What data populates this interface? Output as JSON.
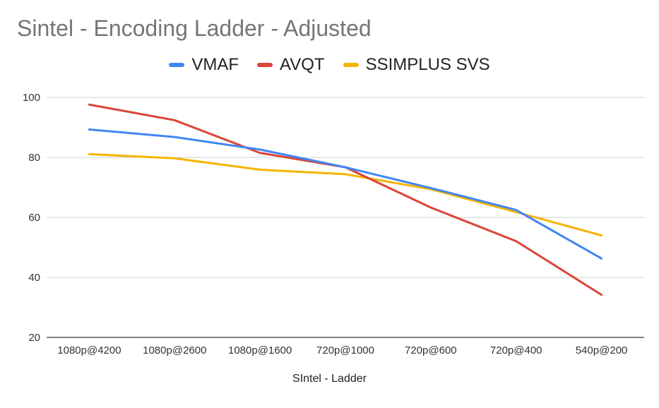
{
  "title": "Sintel - Encoding Ladder - Adjusted",
  "legend": [
    {
      "name": "VMAF",
      "color": "#4285f4"
    },
    {
      "name": "AVQT",
      "color": "#db4437"
    },
    {
      "name": "SSIMPLUS SVS",
      "color": "#f4b400"
    }
  ],
  "chart_data": {
    "type": "line",
    "title": "Sintel - Encoding Ladder - Adjusted",
    "xlabel": "SIntel - Ladder",
    "ylabel": "",
    "categories": [
      "1080p@4200",
      "1080p@2600",
      "1080p@1600",
      "720p@1000",
      "720p@600",
      "720p@400",
      "540p@200"
    ],
    "ylim": [
      20,
      100
    ],
    "yticks": [
      20,
      40,
      60,
      80,
      100
    ],
    "grid": true,
    "legend_position": "top",
    "series": [
      {
        "name": "VMAF",
        "color": "#4285f4",
        "values": [
          89.3,
          86.8,
          82.6,
          76.7,
          69.8,
          62.5,
          46.3
        ]
      },
      {
        "name": "AVQT",
        "color": "#db4437",
        "values": [
          97.6,
          92.4,
          81.5,
          76.7,
          63.3,
          52.1,
          34.2
        ]
      },
      {
        "name": "SSIMPLUS SVS",
        "color": "#f4b400",
        "values": [
          81.1,
          79.7,
          75.9,
          74.4,
          69.4,
          61.8,
          54.0
        ]
      }
    ]
  }
}
